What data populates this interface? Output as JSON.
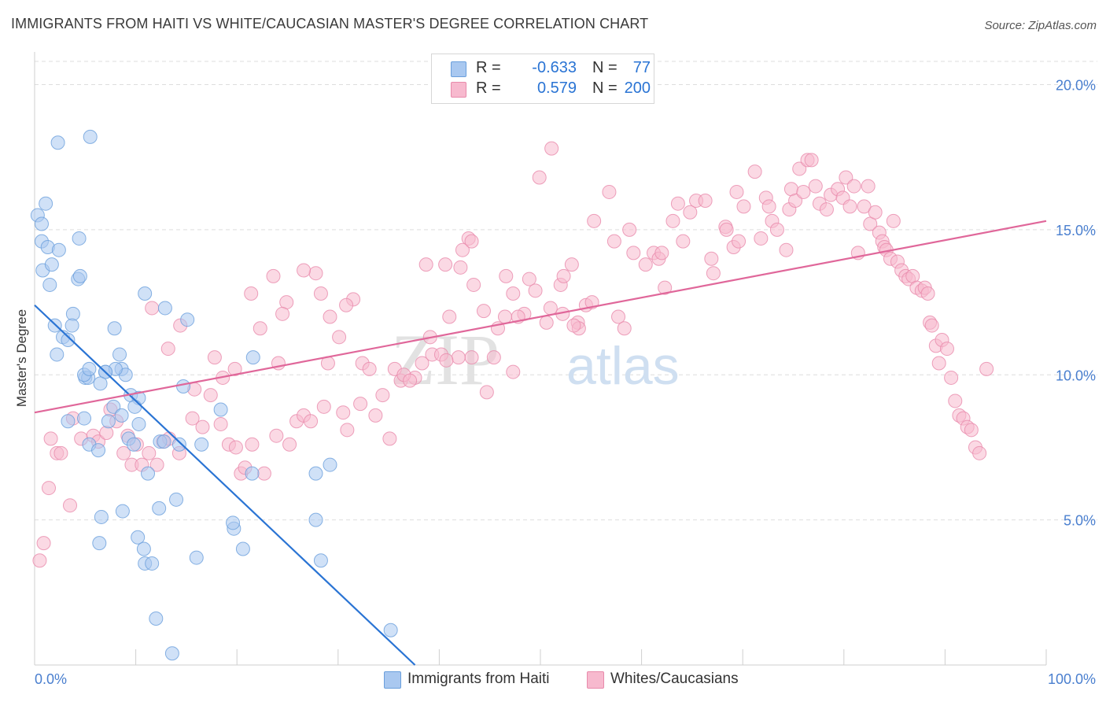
{
  "title": "IMMIGRANTS FROM HAITI VS WHITE/CAUCASIAN MASTER'S DEGREE CORRELATION CHART",
  "source": "Source: ZipAtlas.com",
  "watermark": {
    "zip": "ZIP",
    "atlas": "atlas"
  },
  "colors": {
    "blue_fill": "#a9c8f0",
    "blue_stroke": "#6a9fdc",
    "blue_line": "#2a74d4",
    "pink_fill": "#f7b9ce",
    "pink_stroke": "#e88aab",
    "pink_line": "#e0679a",
    "axis_text": "#4a7fcf",
    "grid": "#dedede"
  },
  "legend": {
    "rows": [
      {
        "series": "blue",
        "r_label": "R =",
        "r_value": "-0.633",
        "n_label": "N =",
        "n_value": "77"
      },
      {
        "series": "pink",
        "r_label": "R =",
        "r_value": "0.579",
        "n_label": "N =",
        "n_value": "200"
      }
    ]
  },
  "bottom_legend": [
    "Immigrants from Haiti",
    "Whites/Caucasians"
  ],
  "chart_data": {
    "type": "scatter",
    "title": "IMMIGRANTS FROM HAITI VS WHITE/CAUCASIAN MASTER'S DEGREE CORRELATION CHART",
    "xlabel": "",
    "ylabel": "Master's Degree",
    "xlim": [
      0,
      100
    ],
    "ylim": [
      0,
      20.8
    ],
    "x_tick_labels": [
      "0.0%",
      "100.0%"
    ],
    "y_ticks": [
      5,
      10,
      15,
      20
    ],
    "y_tick_labels": [
      "5.0%",
      "10.0%",
      "15.0%",
      "20.0%"
    ],
    "grid": true,
    "legend_position": "top-center",
    "series": [
      {
        "name": "Immigrants from Haiti",
        "color": "blue",
        "trend": {
          "x0": 0,
          "y0": 12.4,
          "x1": 37.6,
          "y1": 0
        },
        "points": [
          [
            0.3,
            15.5
          ],
          [
            0.7,
            15.2
          ],
          [
            1.1,
            15.9
          ],
          [
            0.7,
            14.6
          ],
          [
            1.3,
            14.4
          ],
          [
            0.8,
            13.6
          ],
          [
            1.7,
            13.8
          ],
          [
            2.4,
            14.3
          ],
          [
            1.5,
            13.1
          ],
          [
            4.4,
            14.7
          ],
          [
            4.3,
            13.3
          ],
          [
            4.5,
            13.4
          ],
          [
            5.5,
            18.2
          ],
          [
            2.3,
            18.0
          ],
          [
            3.8,
            12.1
          ],
          [
            2.0,
            11.7
          ],
          [
            3.7,
            11.7
          ],
          [
            2.8,
            11.3
          ],
          [
            3.3,
            11.2
          ],
          [
            2.2,
            10.7
          ],
          [
            7.9,
            11.6
          ],
          [
            8.4,
            10.7
          ],
          [
            7.0,
            10.1
          ],
          [
            8.6,
            10.2
          ],
          [
            9.0,
            10.0
          ],
          [
            8.0,
            10.2
          ],
          [
            5.0,
            9.9
          ],
          [
            5.3,
            9.9
          ],
          [
            7.0,
            10.1
          ],
          [
            6.5,
            9.7
          ],
          [
            9.5,
            9.3
          ],
          [
            10.3,
            9.2
          ],
          [
            7.8,
            8.9
          ],
          [
            9.9,
            8.9
          ],
          [
            7.3,
            8.4
          ],
          [
            8.6,
            8.6
          ],
          [
            10.9,
            12.8
          ],
          [
            12.9,
            12.3
          ],
          [
            15.1,
            11.9
          ],
          [
            14.7,
            9.6
          ],
          [
            10.3,
            8.3
          ],
          [
            3.3,
            8.4
          ],
          [
            4.9,
            8.5
          ],
          [
            9.3,
            7.8
          ],
          [
            9.8,
            7.6
          ],
          [
            12.4,
            7.7
          ],
          [
            12.8,
            7.7
          ],
          [
            14.3,
            7.6
          ],
          [
            16.5,
            7.6
          ],
          [
            5.4,
            7.6
          ],
          [
            6.3,
            7.4
          ],
          [
            11.2,
            6.6
          ],
          [
            18.4,
            8.8
          ],
          [
            21.6,
            10.6
          ],
          [
            27.8,
            6.6
          ],
          [
            29.2,
            6.9
          ],
          [
            21.5,
            6.6
          ],
          [
            12.3,
            5.4
          ],
          [
            14.0,
            5.7
          ],
          [
            8.7,
            5.3
          ],
          [
            6.6,
            5.1
          ],
          [
            19.7,
            4.7
          ],
          [
            19.6,
            4.9
          ],
          [
            27.8,
            5.0
          ],
          [
            10.2,
            4.4
          ],
          [
            10.8,
            4.0
          ],
          [
            6.4,
            4.2
          ],
          [
            16.0,
            3.7
          ],
          [
            20.6,
            4.0
          ],
          [
            28.3,
            3.6
          ],
          [
            10.9,
            3.5
          ],
          [
            11.6,
            3.5
          ],
          [
            12.0,
            1.6
          ],
          [
            35.2,
            1.2
          ],
          [
            13.6,
            0.4
          ],
          [
            4.9,
            10.0
          ],
          [
            5.4,
            10.2
          ]
        ]
      },
      {
        "name": "Whites/Caucasians",
        "color": "pink",
        "trend": {
          "x0": 0,
          "y0": 8.7,
          "x1": 100,
          "y1": 15.3
        },
        "points": [
          [
            0.5,
            3.6
          ],
          [
            0.9,
            4.2
          ],
          [
            3.5,
            5.5
          ],
          [
            1.4,
            6.1
          ],
          [
            2.2,
            7.3
          ],
          [
            2.6,
            7.3
          ],
          [
            1.6,
            7.8
          ],
          [
            3.8,
            8.5
          ],
          [
            4.6,
            7.8
          ],
          [
            5.8,
            7.9
          ],
          [
            6.3,
            7.7
          ],
          [
            7.1,
            8.0
          ],
          [
            7.5,
            8.8
          ],
          [
            8.1,
            8.4
          ],
          [
            8.8,
            7.3
          ],
          [
            9.2,
            7.9
          ],
          [
            9.6,
            6.9
          ],
          [
            10.1,
            7.6
          ],
          [
            10.6,
            6.9
          ],
          [
            11.3,
            7.3
          ],
          [
            12.1,
            6.9
          ],
          [
            12.7,
            7.7
          ],
          [
            13.3,
            7.8
          ],
          [
            14.3,
            7.3
          ],
          [
            15.6,
            8.5
          ],
          [
            15.8,
            9.5
          ],
          [
            16.6,
            8.2
          ],
          [
            17.4,
            9.3
          ],
          [
            18.4,
            8.3
          ],
          [
            19.2,
            7.6
          ],
          [
            19.9,
            7.5
          ],
          [
            20.4,
            6.6
          ],
          [
            20.8,
            6.8
          ],
          [
            21.5,
            7.6
          ],
          [
            22.7,
            6.6
          ],
          [
            23.9,
            7.9
          ],
          [
            25.2,
            7.6
          ],
          [
            25.9,
            8.4
          ],
          [
            26.6,
            8.6
          ],
          [
            27.3,
            8.4
          ],
          [
            28.6,
            8.9
          ],
          [
            29.0,
            10.4
          ],
          [
            30.5,
            8.7
          ],
          [
            30.9,
            8.1
          ],
          [
            32.4,
            10.4
          ],
          [
            33.1,
            10.2
          ],
          [
            33.7,
            8.6
          ],
          [
            35.1,
            7.8
          ],
          [
            35.6,
            10.2
          ],
          [
            36.2,
            9.8
          ],
          [
            37.6,
            9.9
          ],
          [
            39.1,
            11.3
          ],
          [
            39.3,
            10.7
          ],
          [
            40.2,
            10.7
          ],
          [
            41.0,
            12.0
          ],
          [
            40.6,
            13.8
          ],
          [
            42.3,
            14.3
          ],
          [
            42.9,
            14.7
          ],
          [
            43.2,
            14.6
          ],
          [
            42.1,
            13.7
          ],
          [
            43.4,
            13.1
          ],
          [
            44.4,
            12.2
          ],
          [
            45.8,
            11.6
          ],
          [
            46.5,
            12.0
          ],
          [
            46.6,
            13.4
          ],
          [
            47.3,
            12.8
          ],
          [
            48.4,
            12.1
          ],
          [
            48.9,
            13.3
          ],
          [
            49.5,
            12.9
          ],
          [
            50.6,
            11.8
          ],
          [
            51.0,
            12.3
          ],
          [
            52.0,
            13.1
          ],
          [
            52.2,
            12.1
          ],
          [
            52.3,
            13.4
          ],
          [
            53.1,
            13.8
          ],
          [
            53.7,
            11.8
          ],
          [
            53.8,
            11.6
          ],
          [
            54.5,
            12.4
          ],
          [
            55.1,
            12.5
          ],
          [
            56.8,
            16.3
          ],
          [
            57.3,
            14.6
          ],
          [
            57.7,
            12.0
          ],
          [
            58.3,
            11.6
          ],
          [
            58.8,
            15.0
          ],
          [
            59.2,
            14.2
          ],
          [
            60.4,
            13.8
          ],
          [
            61.2,
            14.2
          ],
          [
            61.7,
            14.0
          ],
          [
            62.0,
            14.2
          ],
          [
            62.3,
            13.0
          ],
          [
            63.1,
            15.3
          ],
          [
            63.6,
            15.9
          ],
          [
            64.1,
            14.6
          ],
          [
            64.8,
            15.6
          ],
          [
            65.4,
            16.0
          ],
          [
            66.3,
            16.0
          ],
          [
            66.9,
            14.0
          ],
          [
            67.1,
            13.5
          ],
          [
            68.3,
            15.1
          ],
          [
            68.4,
            15.0
          ],
          [
            69.1,
            14.4
          ],
          [
            69.4,
            16.3
          ],
          [
            69.6,
            14.6
          ],
          [
            70.1,
            15.8
          ],
          [
            71.2,
            17.0
          ],
          [
            71.8,
            14.7
          ],
          [
            72.3,
            16.1
          ],
          [
            72.6,
            15.8
          ],
          [
            72.9,
            15.3
          ],
          [
            73.4,
            15.0
          ],
          [
            74.3,
            14.3
          ],
          [
            74.6,
            15.7
          ],
          [
            74.8,
            16.4
          ],
          [
            75.2,
            16.0
          ],
          [
            75.6,
            17.1
          ],
          [
            76.0,
            16.3
          ],
          [
            76.4,
            17.4
          ],
          [
            76.8,
            17.4
          ],
          [
            77.2,
            16.5
          ],
          [
            77.6,
            15.9
          ],
          [
            78.3,
            15.7
          ],
          [
            78.7,
            16.2
          ],
          [
            79.4,
            16.4
          ],
          [
            79.9,
            16.1
          ],
          [
            80.2,
            16.8
          ],
          [
            80.6,
            15.8
          ],
          [
            81.0,
            16.5
          ],
          [
            81.4,
            14.2
          ],
          [
            82.0,
            15.8
          ],
          [
            82.4,
            16.5
          ],
          [
            82.6,
            15.2
          ],
          [
            83.1,
            15.6
          ],
          [
            83.5,
            14.9
          ],
          [
            83.8,
            14.6
          ],
          [
            84.0,
            14.4
          ],
          [
            84.2,
            14.3
          ],
          [
            84.6,
            14.0
          ],
          [
            84.9,
            15.3
          ],
          [
            85.3,
            13.9
          ],
          [
            85.7,
            13.6
          ],
          [
            86.1,
            13.4
          ],
          [
            86.4,
            13.3
          ],
          [
            86.8,
            13.4
          ],
          [
            87.2,
            13.0
          ],
          [
            87.7,
            12.9
          ],
          [
            88.0,
            13.0
          ],
          [
            88.3,
            12.8
          ],
          [
            88.5,
            11.8
          ],
          [
            88.7,
            11.7
          ],
          [
            89.1,
            11.0
          ],
          [
            89.4,
            10.4
          ],
          [
            89.7,
            11.2
          ],
          [
            90.2,
            10.9
          ],
          [
            90.6,
            9.9
          ],
          [
            91.0,
            9.1
          ],
          [
            91.4,
            8.6
          ],
          [
            91.8,
            8.5
          ],
          [
            92.2,
            8.2
          ],
          [
            92.6,
            8.1
          ],
          [
            93.0,
            7.5
          ],
          [
            93.4,
            7.3
          ],
          [
            94.1,
            10.2
          ],
          [
            53.3,
            11.7
          ],
          [
            47.8,
            12.0
          ],
          [
            45.4,
            10.6
          ],
          [
            44.7,
            9.4
          ],
          [
            43.2,
            10.6
          ],
          [
            41.9,
            10.6
          ],
          [
            40.7,
            10.5
          ],
          [
            38.3,
            10.4
          ],
          [
            36.5,
            10.0
          ],
          [
            34.4,
            9.3
          ],
          [
            32.2,
            9.0
          ],
          [
            31.5,
            12.6
          ],
          [
            30.8,
            12.4
          ],
          [
            29.2,
            12.0
          ],
          [
            27.8,
            13.5
          ],
          [
            28.3,
            12.8
          ],
          [
            26.6,
            13.6
          ],
          [
            24.9,
            12.5
          ],
          [
            24.5,
            12.1
          ],
          [
            23.6,
            13.4
          ],
          [
            22.3,
            11.6
          ],
          [
            21.4,
            12.8
          ],
          [
            17.8,
            10.6
          ],
          [
            14.4,
            11.7
          ],
          [
            13.2,
            10.9
          ],
          [
            11.6,
            12.3
          ],
          [
            19.8,
            10.2
          ],
          [
            18.6,
            9.9
          ],
          [
            24.1,
            10.4
          ],
          [
            30.1,
            11.3
          ],
          [
            37.1,
            9.8
          ],
          [
            38.7,
            13.8
          ],
          [
            47.3,
            10.1
          ],
          [
            49.9,
            16.8
          ],
          [
            51.1,
            17.8
          ],
          [
            55.3,
            15.3
          ]
        ]
      }
    ]
  }
}
